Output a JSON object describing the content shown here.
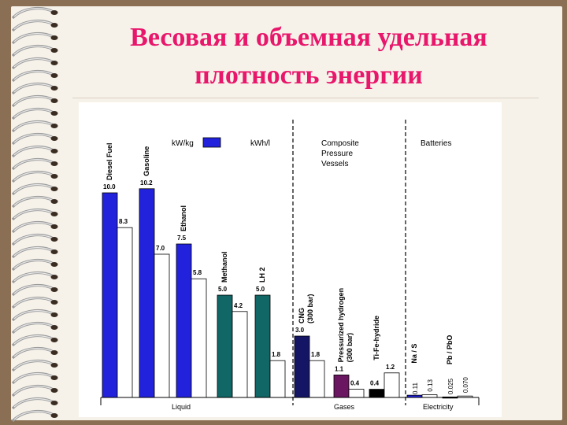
{
  "slide": {
    "title_line1": "Весовая и объемная удельная",
    "title_line2": "плотность энергии"
  },
  "colors": {
    "background": "#8a6f55",
    "paper": "#f6f2ea",
    "title": "#e8176b",
    "liquid": "#2222dd",
    "alcohol": "#116666",
    "cng": "#151565",
    "hydride": "#6a1660",
    "black": "#000000",
    "volume_fill": "#ffffff"
  },
  "chart_data": {
    "type": "bar",
    "title": "",
    "legend": [
      {
        "label": "kW/kg",
        "swatch": "#2222dd"
      },
      {
        "label": "kWh/l",
        "swatch": "#ffffff"
      }
    ],
    "section_headers": [
      {
        "lines": [
          "Composite",
          "Pressure",
          "Vessels"
        ]
      },
      {
        "lines": [
          "Batteries"
        ]
      }
    ],
    "groups": [
      {
        "name": "Liquid",
        "categories": [
          "Diesel Fuel",
          "Gasoline",
          "Ethanol",
          "Methanol",
          "LH 2"
        ]
      },
      {
        "name": "Gases",
        "categories": [
          "CNG (300 bar)",
          "Pressurized hydrogen (300 bar)",
          "Ti-Fe-hydride"
        ]
      },
      {
        "name": "Electricity",
        "categories": [
          "Na / S",
          "Pb / PbO"
        ]
      }
    ],
    "categories": [
      {
        "name": "Diesel Fuel",
        "color": "#2222dd",
        "mass": 10.0,
        "mass_label": "10.0",
        "volume": 8.3,
        "volume_label": "8.3"
      },
      {
        "name": "Gasoline",
        "color": "#2222dd",
        "mass": 10.2,
        "mass_label": "10.2",
        "volume": 7.0,
        "volume_label": "7.0"
      },
      {
        "name": "Ethanol",
        "color": "#2222dd",
        "mass": 7.5,
        "mass_label": "7.5",
        "volume": 5.8,
        "volume_label": "5.8"
      },
      {
        "name": "Methanol",
        "color": "#116666",
        "mass": 5.0,
        "mass_label": "5.0",
        "volume": 4.2,
        "volume_label": "4.2"
      },
      {
        "name": "LH 2",
        "color": "#116666",
        "mass": 5.0,
        "mass_label": "5.0",
        "volume": 1.8,
        "volume_label": "1.8"
      },
      {
        "name": "CNG (300 bar)",
        "color": "#151565",
        "mass": 3.0,
        "mass_label": "3.0",
        "volume": 1.8,
        "volume_label": "1.8"
      },
      {
        "name": "Pressurized hydrogen (300 bar)",
        "color": "#6a1660",
        "mass": 1.1,
        "mass_label": "1.1",
        "volume": 0.4,
        "volume_label": "0.4"
      },
      {
        "name": "Ti-Fe-hydride",
        "color": "#000000",
        "mass": 0.4,
        "mass_label": "0.4",
        "volume": 1.2,
        "volume_label": "1.2"
      },
      {
        "name": "Na / S",
        "color": "#2222dd",
        "mass": 0.11,
        "mass_label": "0.11",
        "volume": 0.13,
        "volume_label": "0.13"
      },
      {
        "name": "Pb / PbO",
        "color": "#2222dd",
        "mass": 0.025,
        "mass_label": "0.025",
        "volume": 0.07,
        "volume_label": "0.070"
      }
    ],
    "ylim": [
      0,
      11
    ]
  }
}
